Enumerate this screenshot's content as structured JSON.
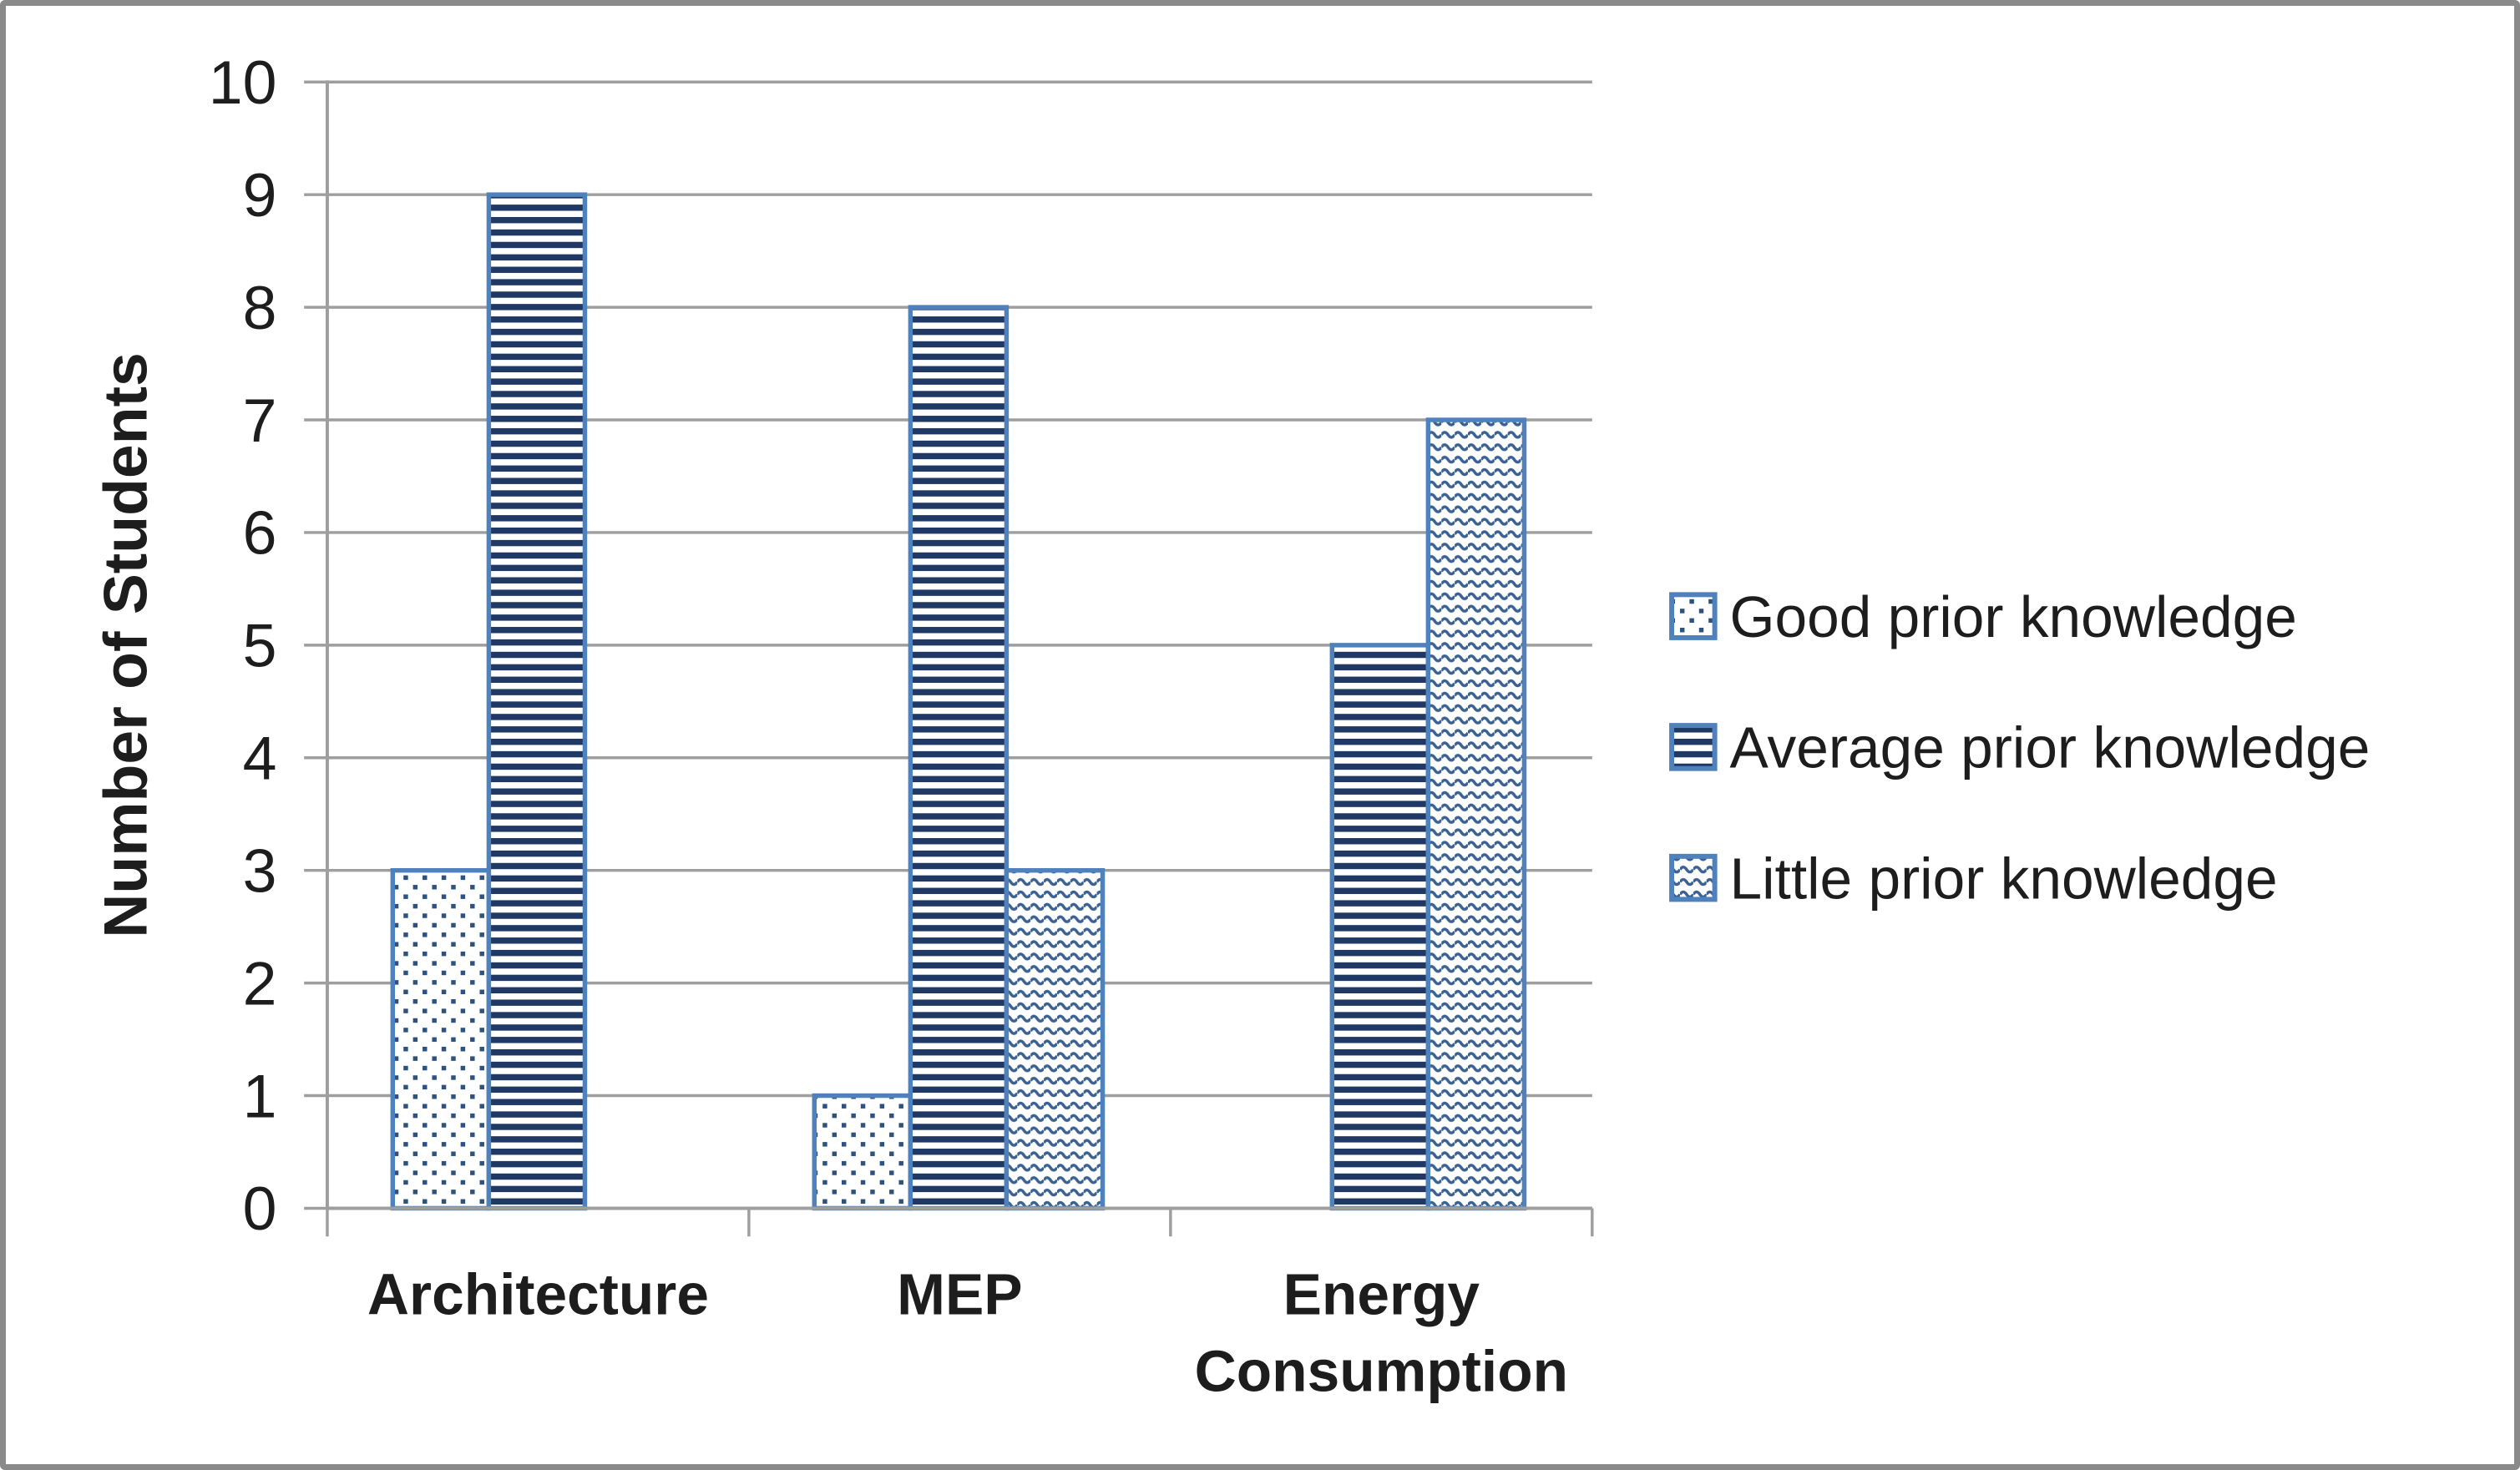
{
  "chart_data": {
    "type": "bar",
    "title": "",
    "categories": [
      "Architecture",
      "MEP",
      "Energy Consumption"
    ],
    "series": [
      {
        "name": "Good prior knowledge",
        "pattern": "dots",
        "values": [
          3,
          1,
          null
        ]
      },
      {
        "name": "Average prior knowledge",
        "pattern": "hstripes",
        "values": [
          9,
          8,
          5
        ]
      },
      {
        "name": "Little prior knowledge",
        "pattern": "waves",
        "values": [
          null,
          3,
          7
        ]
      }
    ],
    "xlabel": "",
    "ylabel": "Number of Students",
    "ylim": [
      0,
      10
    ],
    "ytick_step": 1,
    "grid": true,
    "legend_position": "right"
  },
  "colors": {
    "background": "#ffffff",
    "frame_border": "#8a8a8a",
    "gridline": "#9e9e9e",
    "text": "#1d1d1d",
    "bar_border": "#4f81bd",
    "legend_swatch_border": "#4f81bd",
    "pattern_stripe_navy": "#1f3864",
    "pattern_dot_navy": "#2e5280",
    "pattern_wave_blue": "#3a6191"
  }
}
